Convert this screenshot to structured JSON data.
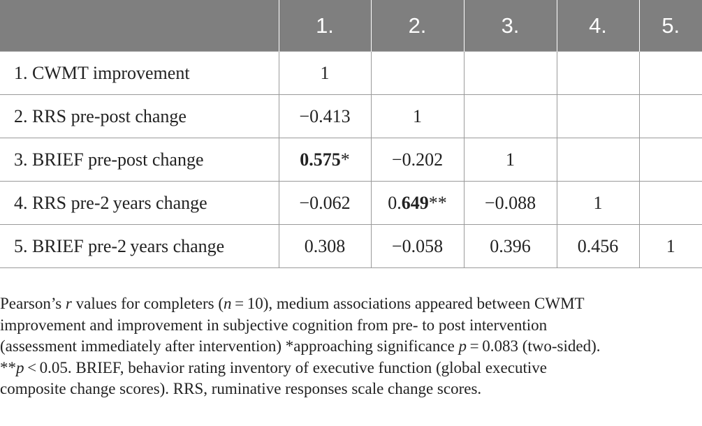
{
  "table": {
    "header": [
      "",
      "1.",
      "2.",
      "3.",
      "4.",
      "5."
    ],
    "rows": [
      {
        "label": "1. CWMT improvement",
        "cells": [
          {
            "v": "1"
          },
          {
            "v": ""
          },
          {
            "v": ""
          },
          {
            "v": ""
          },
          {
            "v": ""
          }
        ]
      },
      {
        "label": "2. RRS pre-post change",
        "cells": [
          {
            "v": "−0.413"
          },
          {
            "v": "1"
          },
          {
            "v": ""
          },
          {
            "v": ""
          },
          {
            "v": ""
          }
        ]
      },
      {
        "label": "3. BRIEF pre-post change",
        "cells": [
          {
            "b": "0.575",
            "s": "*"
          },
          {
            "v": "−0.202"
          },
          {
            "v": "1"
          },
          {
            "v": ""
          },
          {
            "v": ""
          }
        ]
      },
      {
        "label": "4. RRS pre-2 years change",
        "cells": [
          {
            "v": "−0.062"
          },
          {
            "p": "0.",
            "b": "649",
            "s": "**"
          },
          {
            "v": "−0.088"
          },
          {
            "v": "1"
          },
          {
            "v": ""
          }
        ]
      },
      {
        "label": "5. BRIEF pre-2 years change",
        "cells": [
          {
            "v": "0.308"
          },
          {
            "v": "−0.058"
          },
          {
            "v": "0.396"
          },
          {
            "v": "0.456"
          },
          {
            "v": "1"
          }
        ]
      }
    ]
  },
  "footnote": {
    "line1_a": "Pearson’s ",
    "line1_r": "r",
    "line1_b": " values for completers (",
    "line1_n": "n",
    "line1_c": " = 10), medium associations appeared between CWMT",
    "line2": "improvement and improvement in subjective cognition from pre- to post intervention",
    "line3_a": "(assessment immediately after intervention) *approaching significance ",
    "line3_p": "p",
    "line3_b": " = 0.083 (two-sided).",
    "line4_a": "**",
    "line4_p": "p",
    "line4_b": " < 0.05. BRIEF, behavior rating inventory of executive function (global executive",
    "line5": "composite change scores). RRS, ruminative responses scale change scores."
  }
}
